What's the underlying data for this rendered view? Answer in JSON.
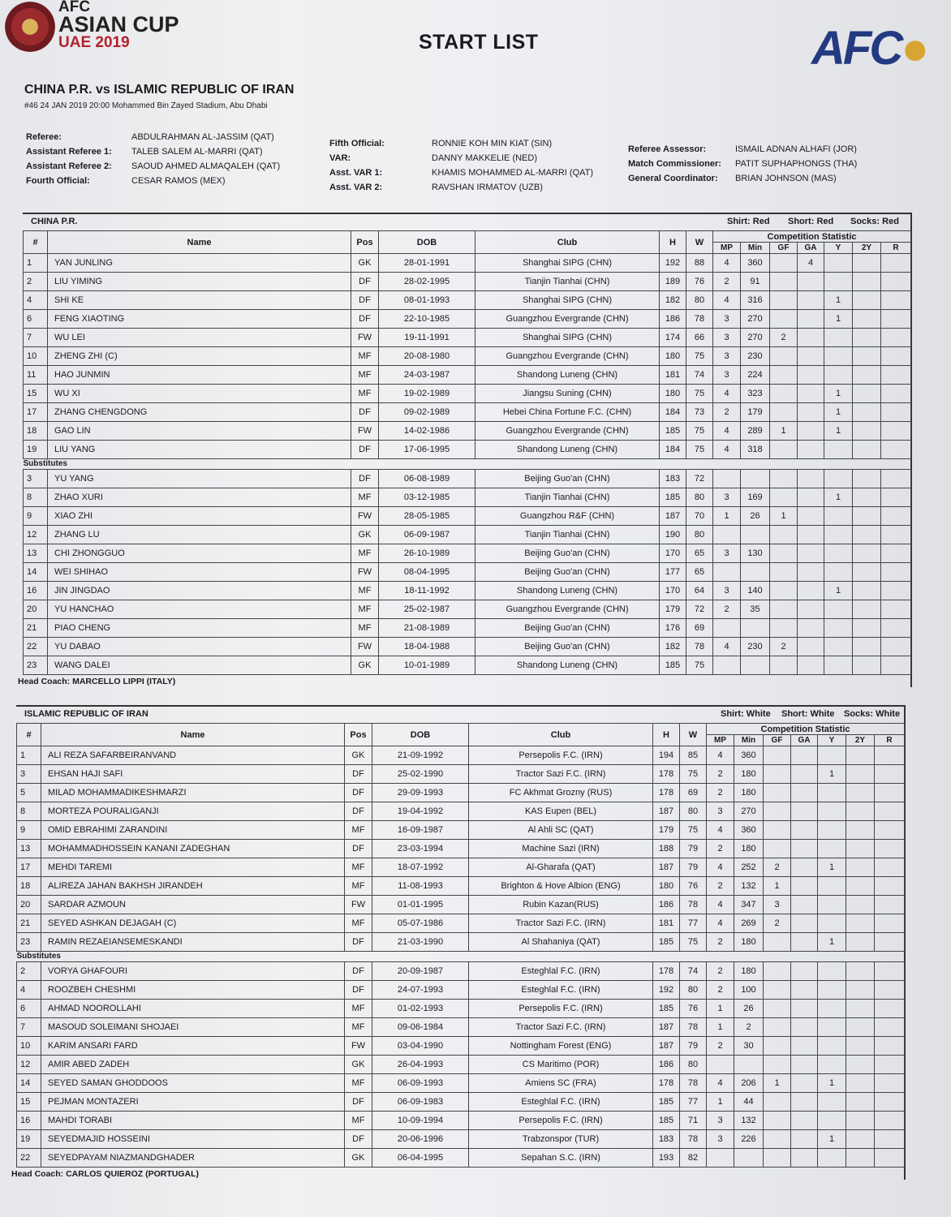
{
  "header": {
    "logo_text_1": "AFC",
    "logo_text_2": "ASIAN CUP",
    "logo_text_3": "UAE 2019",
    "title": "START LIST",
    "afc_logo": "AFC"
  },
  "match": {
    "title": "CHINA P.R. vs ISLAMIC REPUBLIC OF IRAN",
    "info": "#46 24 JAN 2019   20:00   Mohammed Bin Zayed Stadium, Abu Dhabi"
  },
  "officials": [
    [
      {
        "label": "Referee:",
        "value": "ABDULRAHMAN AL-JASSIM (QAT)"
      },
      {
        "label": "Assistant Referee 1:",
        "value": "TALEB SALEM AL-MARRI (QAT)"
      },
      {
        "label": "Assistant Referee 2:",
        "value": "SAOUD AHMED ALMAQALEH (QAT)"
      },
      {
        "label": "Fourth Official:",
        "value": "CESAR RAMOS (MEX)"
      }
    ],
    [
      {
        "label": "Fifth Official:",
        "value": "RONNIE KOH MIN KIAT (SIN)"
      },
      {
        "label": "VAR:",
        "value": "DANNY MAKKELIE (NED)"
      },
      {
        "label": "Asst. VAR 1:",
        "value": "KHAMIS MOHAMMED AL-MARRI (QAT)"
      },
      {
        "label": "Asst. VAR 2:",
        "value": "RAVSHAN IRMATOV (UZB)"
      }
    ],
    [
      {
        "label": "Referee Assessor:",
        "value": "ISMAIL ADNAN ALHAFI (JOR)"
      },
      {
        "label": "Match Commissioner:",
        "value": "PATIT SUPHAPHONGS (THA)"
      },
      {
        "label": "General Coordinator:",
        "value": "BRIAN JOHNSON (MAS)"
      }
    ]
  ],
  "columns": {
    "num": "#",
    "name": "Name",
    "pos": "Pos",
    "dob": "DOB",
    "club": "Club",
    "h": "H",
    "w": "W",
    "group": "Competition Statistic",
    "stats": [
      "MP",
      "Min",
      "GF",
      "GA",
      "Y",
      "2Y",
      "R"
    ]
  },
  "substitutes_label": "Substitutes",
  "teams": [
    {
      "name": "CHINA P.R.",
      "shirt": "Shirt: Red",
      "short": "Short: Red",
      "socks": "Socks: Red",
      "coach": "Head Coach:  MARCELLO LIPPI (ITALY)",
      "starters": [
        [
          "1",
          "YAN JUNLING",
          "GK",
          "28-01-1991",
          "Shanghai SIPG (CHN)",
          "192",
          "88",
          "4",
          "360",
          "",
          "4",
          "",
          "",
          ""
        ],
        [
          "2",
          "LIU YIMING",
          "DF",
          "28-02-1995",
          "Tianjin Tianhai (CHN)",
          "189",
          "76",
          "2",
          "91",
          "",
          "",
          "",
          "",
          ""
        ],
        [
          "4",
          "SHI KE",
          "DF",
          "08-01-1993",
          "Shanghai SIPG (CHN)",
          "182",
          "80",
          "4",
          "316",
          "",
          "",
          "1",
          "",
          ""
        ],
        [
          "6",
          "FENG XIAOTING",
          "DF",
          "22-10-1985",
          "Guangzhou Evergrande (CHN)",
          "186",
          "78",
          "3",
          "270",
          "",
          "",
          "1",
          "",
          ""
        ],
        [
          "7",
          "WU LEI",
          "FW",
          "19-11-1991",
          "Shanghai SIPG (CHN)",
          "174",
          "66",
          "3",
          "270",
          "2",
          "",
          "",
          "",
          ""
        ],
        [
          "10",
          "ZHENG ZHI (C)",
          "MF",
          "20-08-1980",
          "Guangzhou Evergrande (CHN)",
          "180",
          "75",
          "3",
          "230",
          "",
          "",
          "",
          "",
          ""
        ],
        [
          "11",
          "HAO JUNMIN",
          "MF",
          "24-03-1987",
          "Shandong Luneng (CHN)",
          "181",
          "74",
          "3",
          "224",
          "",
          "",
          "",
          "",
          ""
        ],
        [
          "15",
          "WU XI",
          "MF",
          "19-02-1989",
          "Jiangsu Suning (CHN)",
          "180",
          "75",
          "4",
          "323",
          "",
          "",
          "1",
          "",
          ""
        ],
        [
          "17",
          "ZHANG CHENGDONG",
          "DF",
          "09-02-1989",
          "Hebei China Fortune F.C. (CHN)",
          "184",
          "73",
          "2",
          "179",
          "",
          "",
          "1",
          "",
          ""
        ],
        [
          "18",
          "GAO LIN",
          "FW",
          "14-02-1986",
          "Guangzhou Evergrande (CHN)",
          "185",
          "75",
          "4",
          "289",
          "1",
          "",
          "1",
          "",
          ""
        ],
        [
          "19",
          "LIU YANG",
          "DF",
          "17-06-1995",
          "Shandong Luneng (CHN)",
          "184",
          "75",
          "4",
          "318",
          "",
          "",
          "",
          "",
          ""
        ]
      ],
      "subs": [
        [
          "3",
          "YU YANG",
          "DF",
          "06-08-1989",
          "Beijing Guo'an (CHN)",
          "183",
          "72",
          "",
          "",
          "",
          "",
          "",
          "",
          ""
        ],
        [
          "8",
          "ZHAO XURI",
          "MF",
          "03-12-1985",
          "Tianjin Tianhai (CHN)",
          "185",
          "80",
          "3",
          "169",
          "",
          "",
          "1",
          "",
          ""
        ],
        [
          "9",
          "XIAO ZHI",
          "FW",
          "28-05-1985",
          "Guangzhou R&F (CHN)",
          "187",
          "70",
          "1",
          "26",
          "1",
          "",
          "",
          "",
          ""
        ],
        [
          "12",
          "ZHANG LU",
          "GK",
          "06-09-1987",
          "Tianjin Tianhai (CHN)",
          "190",
          "80",
          "",
          "",
          "",
          "",
          "",
          "",
          ""
        ],
        [
          "13",
          "CHI ZHONGGUO",
          "MF",
          "26-10-1989",
          "Beijing Guo'an (CHN)",
          "170",
          "65",
          "3",
          "130",
          "",
          "",
          "",
          "",
          ""
        ],
        [
          "14",
          "WEI SHIHAO",
          "FW",
          "08-04-1995",
          "Beijing Guo'an (CHN)",
          "177",
          "65",
          "",
          "",
          "",
          "",
          "",
          "",
          ""
        ],
        [
          "16",
          "JIN JINGDAO",
          "MF",
          "18-11-1992",
          "Shandong Luneng (CHN)",
          "170",
          "64",
          "3",
          "140",
          "",
          "",
          "1",
          "",
          ""
        ],
        [
          "20",
          "YU HANCHAO",
          "MF",
          "25-02-1987",
          "Guangzhou Evergrande (CHN)",
          "179",
          "72",
          "2",
          "35",
          "",
          "",
          "",
          "",
          ""
        ],
        [
          "21",
          "PIAO CHENG",
          "MF",
          "21-08-1989",
          "Beijing Guo'an (CHN)",
          "176",
          "69",
          "",
          "",
          "",
          "",
          "",
          "",
          ""
        ],
        [
          "22",
          "YU DABAO",
          "FW",
          "18-04-1988",
          "Beijing Guo'an (CHN)",
          "182",
          "78",
          "4",
          "230",
          "2",
          "",
          "",
          "",
          ""
        ],
        [
          "23",
          "WANG DALEI",
          "GK",
          "10-01-1989",
          "Shandong Luneng (CHN)",
          "185",
          "75",
          "",
          "",
          "",
          "",
          "",
          "",
          ""
        ]
      ]
    },
    {
      "name": "ISLAMIC REPUBLIC OF IRAN",
      "shirt": "Shirt: White",
      "short": "Short: White",
      "socks": "Socks: White",
      "coach": "Head Coach:  CARLOS QUIEROZ (PORTUGAL)",
      "starters": [
        [
          "1",
          "ALI REZA SAFARBEIRANVAND",
          "GK",
          "21-09-1992",
          "Persepolis F.C. (IRN)",
          "194",
          "85",
          "4",
          "360",
          "",
          "",
          "",
          "",
          ""
        ],
        [
          "3",
          "EHSAN HAJI SAFI",
          "DF",
          "25-02-1990",
          "Tractor Sazi F.C. (IRN)",
          "178",
          "75",
          "2",
          "180",
          "",
          "",
          "1",
          "",
          ""
        ],
        [
          "5",
          "MILAD MOHAMMADIKESHMARZI",
          "DF",
          "29-09-1993",
          "FC Akhmat Grozny (RUS)",
          "178",
          "69",
          "2",
          "180",
          "",
          "",
          "",
          "",
          ""
        ],
        [
          "8",
          "MORTEZA POURALIGANJI",
          "DF",
          "19-04-1992",
          "KAS Eupen (BEL)",
          "187",
          "80",
          "3",
          "270",
          "",
          "",
          "",
          "",
          ""
        ],
        [
          "9",
          "OMID EBRAHIMI ZARANDINI",
          "MF",
          "16-09-1987",
          "Al Ahli SC (QAT)",
          "179",
          "75",
          "4",
          "360",
          "",
          "",
          "",
          "",
          ""
        ],
        [
          "13",
          "MOHAMMADHOSSEIN KANANI ZADEGHAN",
          "DF",
          "23-03-1994",
          "Machine Sazi (IRN)",
          "188",
          "79",
          "2",
          "180",
          "",
          "",
          "",
          "",
          ""
        ],
        [
          "17",
          "MEHDI TAREMI",
          "MF",
          "18-07-1992",
          "Al-Gharafa (QAT)",
          "187",
          "79",
          "4",
          "252",
          "2",
          "",
          "1",
          "",
          ""
        ],
        [
          "18",
          "ALIREZA JAHAN BAKHSH JIRANDEH",
          "MF",
          "11-08-1993",
          "Brighton & Hove Albion (ENG)",
          "180",
          "76",
          "2",
          "132",
          "1",
          "",
          "",
          "",
          ""
        ],
        [
          "20",
          "SARDAR AZMOUN",
          "FW",
          "01-01-1995",
          "Rubin Kazan(RUS)",
          "186",
          "78",
          "4",
          "347",
          "3",
          "",
          "",
          "",
          ""
        ],
        [
          "21",
          "SEYED ASHKAN DEJAGAH (C)",
          "MF",
          "05-07-1986",
          "Tractor Sazi F.C. (IRN)",
          "181",
          "77",
          "4",
          "269",
          "2",
          "",
          "",
          "",
          ""
        ],
        [
          "23",
          "RAMIN REZAEIANSEMESKANDI",
          "DF",
          "21-03-1990",
          "Al Shahaniya (QAT)",
          "185",
          "75",
          "2",
          "180",
          "",
          "",
          "1",
          "",
          ""
        ]
      ],
      "subs": [
        [
          "2",
          "VORYA GHAFOURI",
          "DF",
          "20-09-1987",
          "Esteghlal F.C. (IRN)",
          "178",
          "74",
          "2",
          "180",
          "",
          "",
          "",
          "",
          ""
        ],
        [
          "4",
          "ROOZBEH CHESHMI",
          "DF",
          "24-07-1993",
          "Esteghlal F.C. (IRN)",
          "192",
          "80",
          "2",
          "100",
          "",
          "",
          "",
          "",
          ""
        ],
        [
          "6",
          "AHMAD NOOROLLAHI",
          "MF",
          "01-02-1993",
          "Persepolis F.C. (IRN)",
          "185",
          "76",
          "1",
          "26",
          "",
          "",
          "",
          "",
          ""
        ],
        [
          "7",
          "MASOUD SOLEIMANI SHOJAEI",
          "MF",
          "09-06-1984",
          "Tractor Sazi F.C. (IRN)",
          "187",
          "78",
          "1",
          "2",
          "",
          "",
          "",
          "",
          ""
        ],
        [
          "10",
          "KARIM ANSARI FARD",
          "FW",
          "03-04-1990",
          "Nottingham Forest (ENG)",
          "187",
          "79",
          "2",
          "30",
          "",
          "",
          "",
          "",
          ""
        ],
        [
          "12",
          "AMIR ABED ZADEH",
          "GK",
          "26-04-1993",
          "CS Maritimo (POR)",
          "186",
          "80",
          "",
          "",
          "",
          "",
          "",
          "",
          ""
        ],
        [
          "14",
          "SEYED SAMAN GHODDOOS",
          "MF",
          "06-09-1993",
          "Amiens SC (FRA)",
          "178",
          "78",
          "4",
          "206",
          "1",
          "",
          "1",
          "",
          ""
        ],
        [
          "15",
          "PEJMAN MONTAZERI",
          "DF",
          "06-09-1983",
          "Esteghlal F.C. (IRN)",
          "185",
          "77",
          "1",
          "44",
          "",
          "",
          "",
          "",
          ""
        ],
        [
          "16",
          "MAHDI TORABI",
          "MF",
          "10-09-1994",
          "Persepolis F.C. (IRN)",
          "185",
          "71",
          "3",
          "132",
          "",
          "",
          "",
          "",
          ""
        ],
        [
          "19",
          "SEYEDMAJID HOSSEINI",
          "DF",
          "20-06-1996",
          "Trabzonspor (TUR)",
          "183",
          "78",
          "3",
          "226",
          "",
          "",
          "1",
          "",
          ""
        ],
        [
          "22",
          "SEYEDPAYAM NIAZMANDGHADER",
          "GK",
          "06-04-1995",
          "Sepahan S.C. (IRN)",
          "193",
          "82",
          "",
          "",
          "",
          "",
          "",
          "",
          ""
        ]
      ]
    }
  ]
}
